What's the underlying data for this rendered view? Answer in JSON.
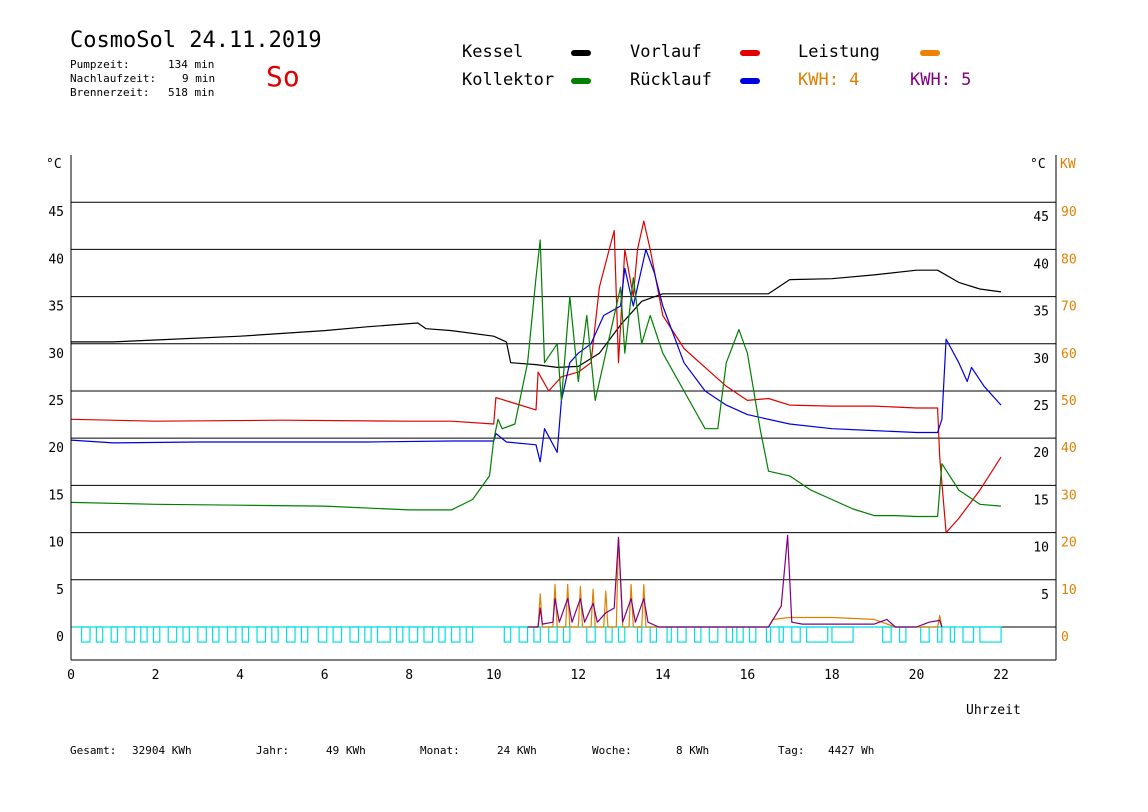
{
  "header": {
    "title": "CosmoSol 24.11.2019",
    "day": "So",
    "stats": [
      {
        "label": "Pumpzeit:",
        "value": "134 min"
      },
      {
        "label": "Nachlaufzeit:",
        "value": "9 min"
      },
      {
        "label": "Brennerzeit:",
        "value": "518 min"
      }
    ]
  },
  "legend": {
    "kessel": "Kessel",
    "kollektor": "Kollektor",
    "vorlauf": "Vorlauf",
    "ruecklauf": "Rücklauf",
    "leistung": "Leistung",
    "kwh4": "KWH: 4",
    "kwh5": "KWH: 5"
  },
  "colors": {
    "kessel": "#000000",
    "kollektor": "#008000",
    "vorlauf": "#e00000",
    "ruecklauf": "#0000e0",
    "leistung": "#f08000",
    "kwh4": "#e08000",
    "kwh5": "#800080",
    "pump": "#00e0e0"
  },
  "chart_data": {
    "type": "line",
    "left_unit": "°C",
    "right_unit_temp": "°C",
    "right_unit_power": "KW",
    "xlabel": "Uhrzeit",
    "xlim": [
      0,
      23.3
    ],
    "ylim": [
      -3.5,
      50
    ],
    "x_ticks": [
      0,
      2,
      4,
      6,
      8,
      10,
      12,
      14,
      16,
      18,
      20,
      22
    ],
    "y_ticks_left": [
      0,
      5,
      10,
      15,
      20,
      25,
      30,
      35,
      40,
      45
    ],
    "y_ticks_right_temp": [
      5,
      10,
      15,
      20,
      25,
      30,
      35,
      40,
      45
    ],
    "y_ticks_right_power": [
      0,
      10,
      20,
      30,
      40,
      50,
      60,
      70,
      80,
      90
    ],
    "grid_lines": [
      0,
      5,
      10,
      15,
      20,
      25,
      30,
      35,
      40,
      45
    ],
    "series": [
      {
        "name": "Kessel",
        "color": "#000000",
        "points": [
          [
            0,
            30.2
          ],
          [
            1,
            30.2
          ],
          [
            2,
            30.4
          ],
          [
            4,
            30.8
          ],
          [
            6,
            31.4
          ],
          [
            7,
            31.8
          ],
          [
            8.2,
            32.2
          ],
          [
            8.4,
            31.6
          ],
          [
            9,
            31.4
          ],
          [
            10,
            30.8
          ],
          [
            10.3,
            30.2
          ],
          [
            10.4,
            28
          ],
          [
            11,
            27.8
          ],
          [
            11.5,
            27.5
          ],
          [
            12,
            27.6
          ],
          [
            12.5,
            29
          ],
          [
            13,
            32
          ],
          [
            13.5,
            34.5
          ],
          [
            14,
            35.3
          ],
          [
            15,
            35.3
          ],
          [
            16.5,
            35.3
          ],
          [
            17,
            36.8
          ],
          [
            18,
            36.9
          ],
          [
            19,
            37.3
          ],
          [
            20,
            37.8
          ],
          [
            20.5,
            37.8
          ],
          [
            21,
            36.5
          ],
          [
            21.5,
            35.8
          ],
          [
            22,
            35.5
          ]
        ]
      },
      {
        "name": "Vorlauf",
        "color": "#e00000",
        "points": [
          [
            0,
            22
          ],
          [
            2,
            21.8
          ],
          [
            5,
            21.9
          ],
          [
            8,
            21.8
          ],
          [
            9,
            21.8
          ],
          [
            10,
            21.5
          ],
          [
            10.05,
            24.3
          ],
          [
            11,
            23
          ],
          [
            11.05,
            27
          ],
          [
            11.3,
            25
          ],
          [
            11.6,
            26.5
          ],
          [
            12,
            27
          ],
          [
            12.3,
            28
          ],
          [
            12.5,
            36
          ],
          [
            12.85,
            42
          ],
          [
            12.95,
            28
          ],
          [
            13.1,
            40
          ],
          [
            13.3,
            35
          ],
          [
            13.4,
            40
          ],
          [
            13.55,
            43
          ],
          [
            13.7,
            40
          ],
          [
            14,
            33
          ],
          [
            14.5,
            29.5
          ],
          [
            15,
            27.5
          ],
          [
            15.5,
            25.5
          ],
          [
            16,
            24
          ],
          [
            16.5,
            24.2
          ],
          [
            17,
            23.5
          ],
          [
            18,
            23.4
          ],
          [
            19,
            23.4
          ],
          [
            20,
            23.2
          ],
          [
            20.5,
            23.2
          ],
          [
            20.55,
            18
          ],
          [
            20.7,
            10
          ],
          [
            21,
            11.5
          ],
          [
            21.5,
            14.5
          ],
          [
            22,
            18
          ]
        ]
      },
      {
        "name": "Rücklauf",
        "color": "#0000e0",
        "points": [
          [
            0,
            19.8
          ],
          [
            1,
            19.5
          ],
          [
            3,
            19.6
          ],
          [
            5,
            19.6
          ],
          [
            7,
            19.6
          ],
          [
            9,
            19.7
          ],
          [
            10,
            19.7
          ],
          [
            10.05,
            20.5
          ],
          [
            10.3,
            19.6
          ],
          [
            11,
            19.3
          ],
          [
            11.1,
            17.5
          ],
          [
            11.2,
            21
          ],
          [
            11.5,
            18.5
          ],
          [
            11.6,
            24
          ],
          [
            11.8,
            28
          ],
          [
            12,
            29
          ],
          [
            12.3,
            30
          ],
          [
            12.6,
            33
          ],
          [
            13,
            34
          ],
          [
            13.1,
            38
          ],
          [
            13.3,
            34
          ],
          [
            13.5,
            38
          ],
          [
            13.6,
            40
          ],
          [
            13.8,
            37.5
          ],
          [
            14,
            34
          ],
          [
            14.5,
            28
          ],
          [
            15,
            25
          ],
          [
            15.5,
            23.5
          ],
          [
            16,
            22.5
          ],
          [
            17,
            21.5
          ],
          [
            18,
            21
          ],
          [
            19,
            20.8
          ],
          [
            20,
            20.6
          ],
          [
            20.5,
            20.6
          ],
          [
            20.6,
            22
          ],
          [
            20.7,
            30.5
          ],
          [
            21,
            28
          ],
          [
            21.2,
            26
          ],
          [
            21.3,
            27.5
          ],
          [
            21.6,
            25.5
          ],
          [
            22,
            23.5
          ]
        ]
      },
      {
        "name": "Kollektor",
        "color": "#008000",
        "points": [
          [
            0,
            13.2
          ],
          [
            2,
            13
          ],
          [
            4,
            12.9
          ],
          [
            6,
            12.8
          ],
          [
            8,
            12.4
          ],
          [
            9,
            12.4
          ],
          [
            9.5,
            13.5
          ],
          [
            9.9,
            16
          ],
          [
            10,
            19.8
          ],
          [
            10.1,
            22
          ],
          [
            10.2,
            21
          ],
          [
            10.5,
            21.5
          ],
          [
            10.8,
            28
          ],
          [
            11,
            37
          ],
          [
            11.1,
            41
          ],
          [
            11.2,
            28
          ],
          [
            11.5,
            30
          ],
          [
            11.6,
            24
          ],
          [
            11.8,
            35
          ],
          [
            12,
            26
          ],
          [
            12.2,
            33
          ],
          [
            12.4,
            24
          ],
          [
            12.7,
            30
          ],
          [
            13,
            36
          ],
          [
            13.1,
            29
          ],
          [
            13.3,
            37
          ],
          [
            13.5,
            30
          ],
          [
            13.7,
            33
          ],
          [
            14,
            29
          ],
          [
            14.5,
            25
          ],
          [
            15,
            21
          ],
          [
            15.3,
            21
          ],
          [
            15.5,
            28
          ],
          [
            15.8,
            31.5
          ],
          [
            16,
            29
          ],
          [
            16.3,
            21
          ],
          [
            16.5,
            16.5
          ],
          [
            17,
            16
          ],
          [
            17.5,
            14.5
          ],
          [
            18,
            13.5
          ],
          [
            18.5,
            12.5
          ],
          [
            19,
            11.8
          ],
          [
            19.5,
            11.8
          ],
          [
            20,
            11.7
          ],
          [
            20.5,
            11.7
          ],
          [
            20.6,
            17.3
          ],
          [
            21,
            14.5
          ],
          [
            21.5,
            13
          ],
          [
            22,
            12.8
          ]
        ]
      },
      {
        "name": "KWH: 4",
        "color": "#e08000",
        "points": [
          [
            10.8,
            0
          ],
          [
            11.05,
            0
          ],
          [
            11.1,
            3.5
          ],
          [
            11.15,
            0
          ],
          [
            11.4,
            0
          ],
          [
            11.45,
            4.5
          ],
          [
            11.5,
            0
          ],
          [
            11.7,
            0
          ],
          [
            11.75,
            4.5
          ],
          [
            11.8,
            0
          ],
          [
            12,
            0
          ],
          [
            12.05,
            4.3
          ],
          [
            12.1,
            0
          ],
          [
            12.3,
            0
          ],
          [
            12.35,
            4
          ],
          [
            12.4,
            0
          ],
          [
            12.6,
            0
          ],
          [
            12.65,
            3.8
          ],
          [
            12.7,
            0
          ],
          [
            12.9,
            0
          ],
          [
            12.95,
            9.5
          ],
          [
            13.05,
            0
          ],
          [
            13.2,
            0
          ],
          [
            13.25,
            4.5
          ],
          [
            13.3,
            0
          ],
          [
            13.5,
            0
          ],
          [
            13.55,
            4.5
          ],
          [
            13.6,
            0
          ],
          [
            13.9,
            0
          ],
          [
            16.5,
            0
          ],
          [
            16.6,
            0.8
          ],
          [
            17,
            1
          ],
          [
            18,
            1
          ],
          [
            19,
            0.8
          ],
          [
            19.5,
            0
          ],
          [
            20.5,
            0
          ],
          [
            20.55,
            1.2
          ],
          [
            20.6,
            0
          ]
        ]
      },
      {
        "name": "KWH: 5",
        "color": "#800080",
        "points": [
          [
            10.8,
            0
          ],
          [
            11.05,
            0
          ],
          [
            11.1,
            2
          ],
          [
            11.15,
            0.3
          ],
          [
            11.4,
            0.5
          ],
          [
            11.45,
            3
          ],
          [
            11.55,
            0.5
          ],
          [
            11.75,
            3
          ],
          [
            11.85,
            0.5
          ],
          [
            12.05,
            3
          ],
          [
            12.15,
            0.5
          ],
          [
            12.35,
            2.5
          ],
          [
            12.45,
            0.5
          ],
          [
            12.65,
            1.5
          ],
          [
            12.85,
            2
          ],
          [
            12.95,
            9.5
          ],
          [
            13.05,
            0.5
          ],
          [
            13.25,
            3
          ],
          [
            13.35,
            0.5
          ],
          [
            13.55,
            3
          ],
          [
            13.65,
            0.5
          ],
          [
            13.9,
            0
          ],
          [
            16.5,
            0
          ],
          [
            16.8,
            2.2
          ],
          [
            16.95,
            9.7
          ],
          [
            17.05,
            0.5
          ],
          [
            17.3,
            0.3
          ],
          [
            19,
            0.3
          ],
          [
            19.3,
            0.8
          ],
          [
            19.5,
            0
          ],
          [
            20,
            0
          ],
          [
            20.3,
            0.5
          ],
          [
            20.55,
            0.7
          ],
          [
            20.6,
            0
          ]
        ]
      }
    ],
    "pump_band": {
      "name": "Pumpe",
      "color": "#00e0e0",
      "level_on": 0,
      "level_off": -1.6,
      "segments": [
        [
          0.25,
          0.45
        ],
        [
          0.6,
          0.75
        ],
        [
          0.95,
          1.1
        ],
        [
          1.3,
          1.5
        ],
        [
          1.65,
          1.8
        ],
        [
          1.95,
          2.1
        ],
        [
          2.3,
          2.5
        ],
        [
          2.65,
          2.8
        ],
        [
          3,
          3.2
        ],
        [
          3.35,
          3.5
        ],
        [
          3.7,
          3.9
        ],
        [
          4.05,
          4.2
        ],
        [
          4.4,
          4.6
        ],
        [
          4.75,
          4.9
        ],
        [
          5.1,
          5.3
        ],
        [
          5.45,
          5.6
        ],
        [
          5.85,
          6.05
        ],
        [
          6.2,
          6.4
        ],
        [
          6.6,
          6.8
        ],
        [
          6.95,
          7.1
        ],
        [
          7.25,
          7.55
        ],
        [
          7.7,
          7.85
        ],
        [
          8,
          8.2
        ],
        [
          8.35,
          8.55
        ],
        [
          8.7,
          8.85
        ],
        [
          9,
          9.2
        ],
        [
          9.35,
          9.5
        ],
        [
          10.25,
          10.4
        ],
        [
          10.6,
          10.8
        ],
        [
          10.95,
          11.1
        ],
        [
          11.3,
          11.5
        ],
        [
          11.65,
          11.8
        ],
        [
          12.2,
          12.4
        ],
        [
          12.65,
          12.8
        ],
        [
          12.95,
          13.1
        ],
        [
          13.4,
          13.5
        ],
        [
          13.7,
          13.85
        ],
        [
          14.1,
          14.2
        ],
        [
          14.35,
          14.55
        ],
        [
          14.75,
          14.9
        ],
        [
          15.1,
          15.3
        ],
        [
          15.5,
          15.65
        ],
        [
          15.75,
          15.9
        ],
        [
          16.05,
          16.2
        ],
        [
          16.45,
          16.55
        ],
        [
          16.75,
          16.85
        ],
        [
          17.05,
          17.25
        ],
        [
          17.4,
          17.9
        ],
        [
          18,
          18.5
        ],
        [
          19.2,
          19.4
        ],
        [
          19.6,
          19.75
        ],
        [
          20.1,
          20.3
        ],
        [
          20.5,
          20.6
        ],
        [
          20.8,
          20.9
        ],
        [
          21.1,
          21.35
        ],
        [
          21.5,
          22
        ]
      ]
    }
  },
  "totals": [
    {
      "label": "Gesamt:",
      "value": "32904 KWh"
    },
    {
      "label": "Jahr:",
      "value": "49 KWh"
    },
    {
      "label": "Monat:",
      "value": "24 KWh"
    },
    {
      "label": "Woche:",
      "value": "8 KWh"
    },
    {
      "label": "Tag:",
      "value": "4427 Wh"
    }
  ]
}
